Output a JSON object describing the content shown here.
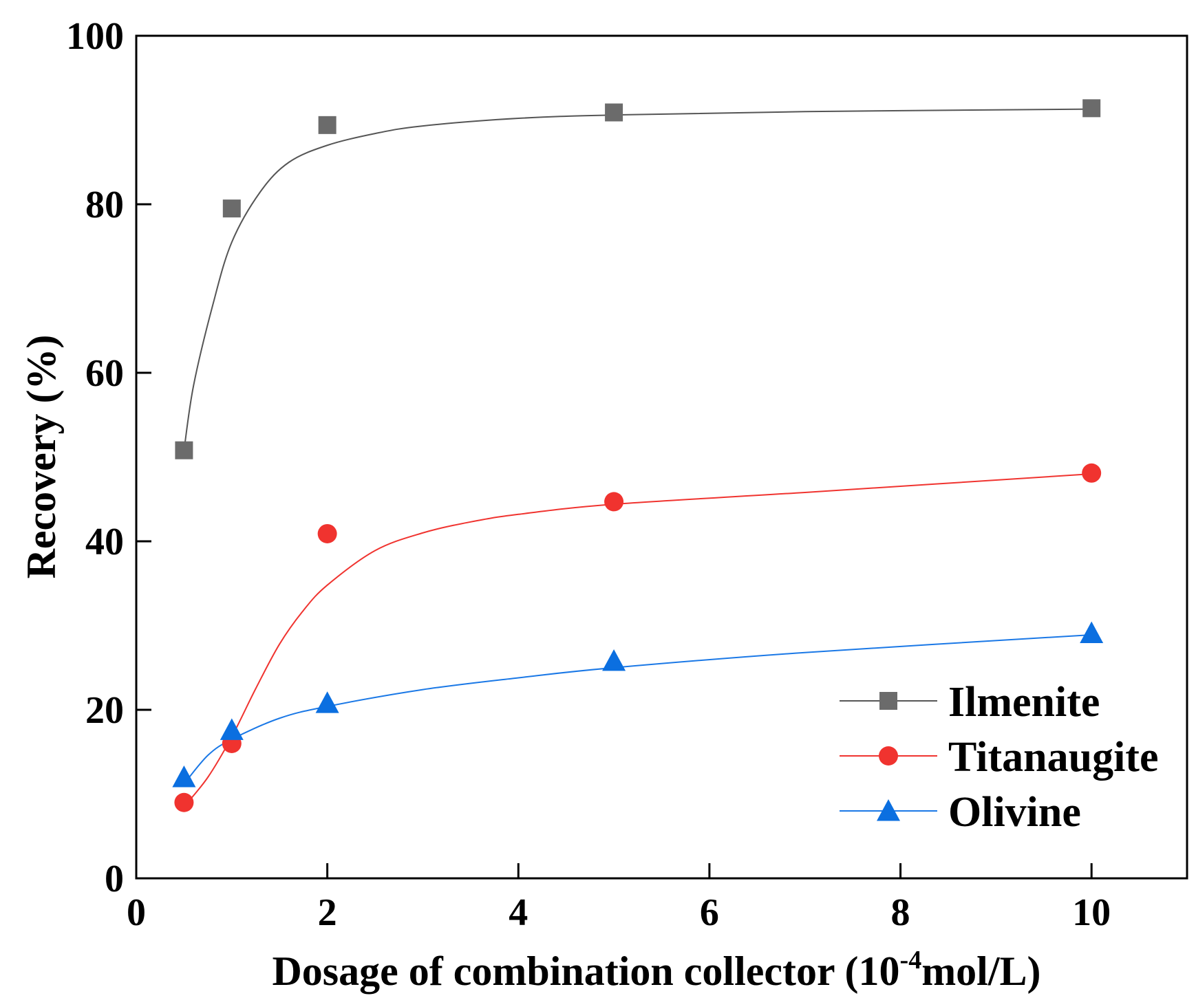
{
  "chart_data": {
    "type": "scatter",
    "xlabel": "Dosage of combination collector (10",
    "xlabel_sup": "-4",
    "xlabel_tail": "mol/L)",
    "ylabel": "Recovery (%)",
    "xlim": [
      0,
      11
    ],
    "ylim": [
      0,
      100
    ],
    "xticks": [
      0,
      2,
      4,
      6,
      8,
      10
    ],
    "yticks": [
      0,
      20,
      40,
      60,
      80,
      100
    ],
    "x": [
      0.5,
      1,
      2,
      5,
      10
    ],
    "legend_position": "bottom-right",
    "series": [
      {
        "name": "Ilmenite",
        "marker": "square",
        "color": "#6b6b6b",
        "line_color": "#555555",
        "values": [
          50.8,
          79.5,
          89.4,
          90.9,
          91.4
        ],
        "fit_x": [
          0.5,
          0.6,
          0.8,
          1.0,
          1.3,
          1.6,
          2.0,
          2.5,
          3.0,
          4.0,
          5.0,
          7.0,
          10.0
        ],
        "fit_y": [
          50.8,
          58.5,
          68.0,
          75.5,
          81.5,
          85.0,
          87.0,
          88.4,
          89.3,
          90.2,
          90.6,
          91.0,
          91.3
        ]
      },
      {
        "name": "Titanaugite",
        "marker": "circle",
        "color": "#f0332f",
        "line_color": "#f0332f",
        "values": [
          9.0,
          16.0,
          40.9,
          44.7,
          48.1
        ],
        "fit_x": [
          0.5,
          0.75,
          1.0,
          1.25,
          1.5,
          1.75,
          2.0,
          2.5,
          3.0,
          3.5,
          4.0,
          5.0,
          7.0,
          10.0
        ],
        "fit_y": [
          8.5,
          12.0,
          16.8,
          22.5,
          27.8,
          31.8,
          34.8,
          38.9,
          41.0,
          42.3,
          43.2,
          44.4,
          45.8,
          48.0
        ]
      },
      {
        "name": "Olivine",
        "marker": "triangle",
        "color": "#0b6fe0",
        "line_color": "#1a78e6",
        "values": [
          12.0,
          17.6,
          20.8,
          25.8,
          29.1
        ],
        "fit_x": [
          0.5,
          0.75,
          1.0,
          1.5,
          2.0,
          3.0,
          4.0,
          5.0,
          7.0,
          10.0
        ],
        "fit_y": [
          11.2,
          14.6,
          16.5,
          19.0,
          20.4,
          22.4,
          23.8,
          25.0,
          26.8,
          28.9
        ]
      }
    ]
  }
}
